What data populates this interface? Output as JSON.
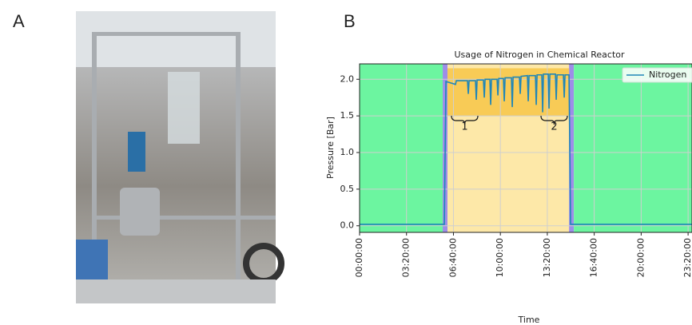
{
  "panels": [
    "A",
    "B"
  ],
  "chart_data": {
    "type": "line",
    "title": "Usage of Nitrogen in Chemical Reactor",
    "x_label": "Time",
    "y_label": "Pressure [Bar]",
    "xlim": [
      0,
      85000
    ],
    "ylim": [
      -0.09,
      2.21
    ],
    "xticks": [
      {
        "value": 0,
        "label": "00:00:00"
      },
      {
        "value": 12000,
        "label": "03:20:00"
      },
      {
        "value": 24000,
        "label": "06:40:00"
      },
      {
        "value": 36000,
        "label": "10:00:00"
      },
      {
        "value": 48000,
        "label": "13:20:00"
      },
      {
        "value": 60000,
        "label": "16:40:00"
      },
      {
        "value": 72000,
        "label": "20:00:00"
      },
      {
        "value": 84000,
        "label": "23:20:00"
      }
    ],
    "yticks": [
      0.0,
      0.5,
      1.0,
      1.5,
      2.0
    ],
    "grid": true,
    "legend": "upper right",
    "shaded_regions": [
      {
        "start": 0,
        "end": 21260,
        "color": "#6cf5a0"
      },
      {
        "start": 21260,
        "end": 22490,
        "color": "#9d8ee8"
      },
      {
        "start": 22490,
        "end": 53560,
        "color": "#fde8a8"
      },
      {
        "start": 53560,
        "end": 54790,
        "color": "#9d8ee8"
      },
      {
        "start": 54790,
        "end": 85000,
        "color": "#6cf5a0"
      }
    ],
    "highlight": {
      "x": [
        22490,
        53560
      ],
      "y": [
        1.5,
        2.15
      ],
      "color": "#f7c548"
    },
    "annotations": [
      "1",
      "2"
    ],
    "series": [
      {
        "name": "Nitrogen",
        "color": "#1f86b8",
        "x": [
          0,
          21670,
          22080,
          24530,
          24730,
          27590,
          27800,
          28000,
          29640,
          29840,
          30050,
          31680,
          31890,
          32090,
          33320,
          33520,
          33730,
          35160,
          35360,
          35570,
          36790,
          37000,
          37200,
          38840,
          39040,
          39250,
          40880,
          41080,
          41290,
          42920,
          43130,
          43330,
          44970,
          45170,
          45380,
          46600,
          46810,
          47010,
          48240,
          48440,
          48650,
          50080,
          50280,
          50490,
          52120,
          52330,
          52530,
          53550,
          53960,
          85000
        ],
        "values": [
          0.02,
          0.02,
          1.97,
          1.93,
          1.98,
          1.98,
          1.8,
          1.98,
          1.98,
          1.72,
          1.99,
          1.99,
          1.75,
          2.0,
          2.0,
          1.65,
          2.0,
          2.0,
          1.78,
          2.01,
          2.01,
          1.7,
          2.02,
          2.02,
          1.62,
          2.03,
          2.03,
          1.8,
          2.04,
          2.05,
          1.7,
          2.05,
          2.05,
          1.65,
          2.06,
          2.06,
          1.55,
          2.07,
          2.07,
          1.6,
          2.07,
          2.07,
          1.72,
          2.06,
          2.06,
          1.75,
          2.06,
          2.06,
          0.02,
          0.02
        ]
      }
    ]
  }
}
